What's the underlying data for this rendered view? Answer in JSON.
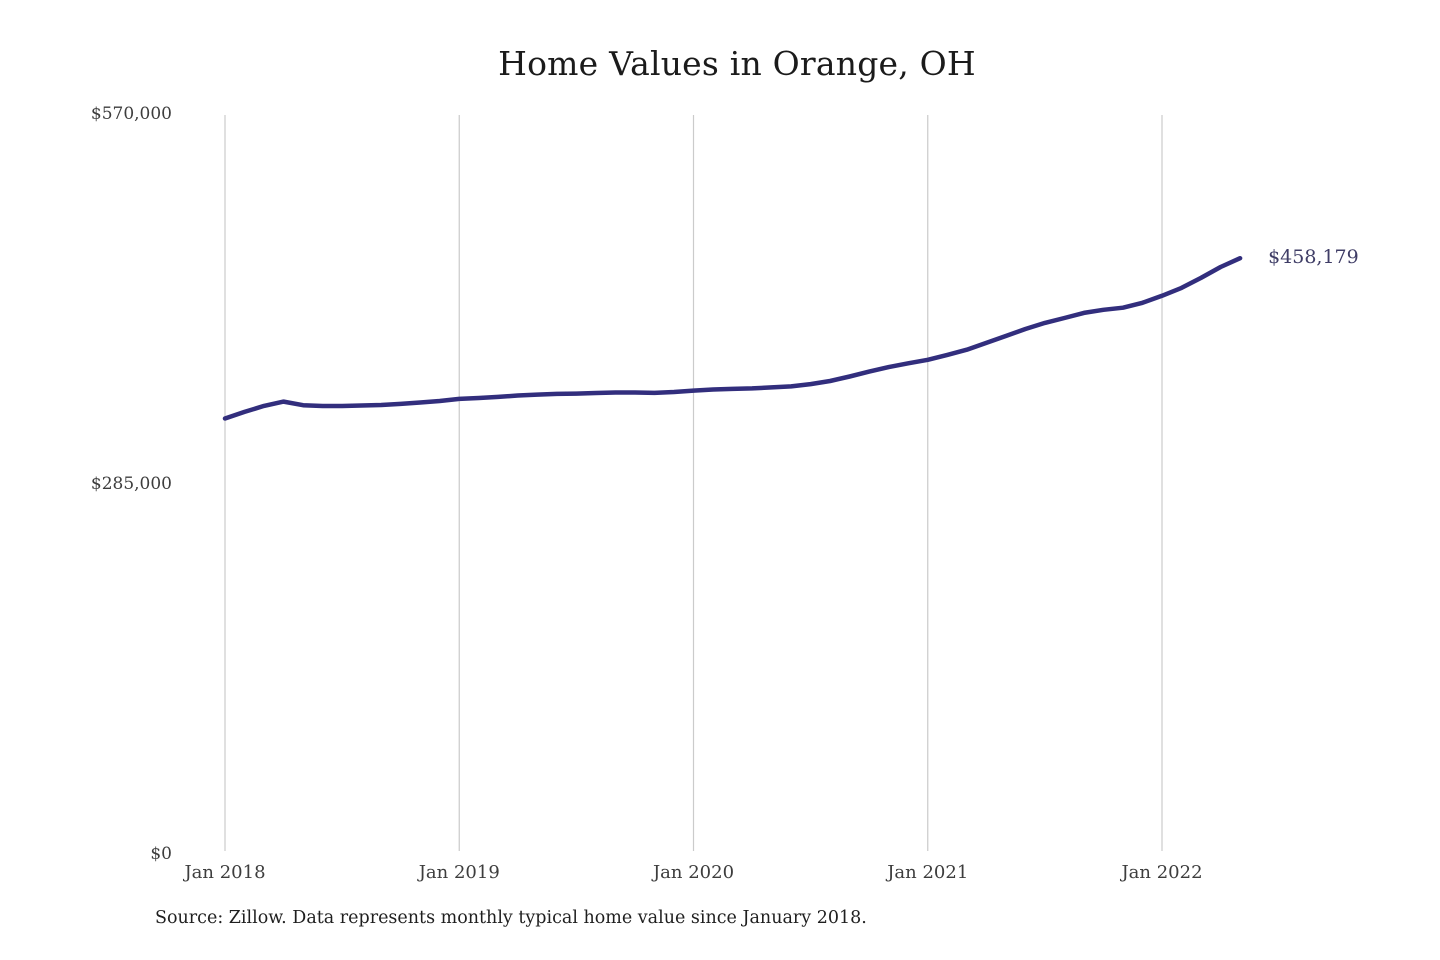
{
  "header": {
    "title": "Home Values in Orange, OH"
  },
  "footer": {
    "source_note": "Source: Zillow. Data represents monthly typical home value since January 2018."
  },
  "chart_data": {
    "type": "line",
    "title": "Home Values in Orange, OH",
    "series_name": "Monthly typical home value (Zillow)",
    "x": [
      "2018-01",
      "2018-02",
      "2018-03",
      "2018-04",
      "2018-05",
      "2018-06",
      "2018-07",
      "2018-08",
      "2018-09",
      "2018-10",
      "2018-11",
      "2018-12",
      "2019-01",
      "2019-02",
      "2019-03",
      "2019-04",
      "2019-05",
      "2019-06",
      "2019-07",
      "2019-08",
      "2019-09",
      "2019-10",
      "2019-11",
      "2019-12",
      "2020-01",
      "2020-02",
      "2020-03",
      "2020-04",
      "2020-05",
      "2020-06",
      "2020-07",
      "2020-08",
      "2020-09",
      "2020-10",
      "2020-11",
      "2020-12",
      "2021-01",
      "2021-02",
      "2021-03",
      "2021-04",
      "2021-05",
      "2021-06",
      "2021-07",
      "2021-08",
      "2021-09",
      "2021-10",
      "2021-11",
      "2021-12",
      "2022-01",
      "2022-02",
      "2022-03",
      "2022-04",
      "2022-05"
    ],
    "values": [
      334700,
      339800,
      344400,
      347700,
      344900,
      344300,
      344300,
      344700,
      345100,
      345900,
      347000,
      348200,
      349800,
      350500,
      351300,
      352400,
      353100,
      353600,
      353900,
      354300,
      354700,
      354700,
      354400,
      355100,
      356200,
      357000,
      357500,
      357900,
      358600,
      359400,
      361200,
      363600,
      367000,
      370800,
      374300,
      377200,
      379900,
      383700,
      387700,
      392900,
      398200,
      403600,
      408300,
      412100,
      416000,
      418400,
      420000,
      423800,
      429200,
      435300,
      443000,
      451400,
      458179
    ],
    "end_value": 458179,
    "end_label": "$458,179",
    "ylim": [
      0,
      570000
    ],
    "y_ticks": [
      {
        "value": 570000,
        "label": "$570,000"
      },
      {
        "value": 285000,
        "label": "$285,000"
      },
      {
        "value": 0,
        "label": "$0"
      }
    ],
    "x_ticks": [
      {
        "x": "2018-01",
        "label": "Jan 2018"
      },
      {
        "x": "2019-01",
        "label": "Jan 2019"
      },
      {
        "x": "2020-01",
        "label": "Jan 2020"
      },
      {
        "x": "2021-01",
        "label": "Jan 2021"
      },
      {
        "x": "2022-01",
        "label": "Jan 2022"
      }
    ],
    "grid": "vertical-only",
    "legend_position": "none",
    "line_color": "#322e7d",
    "end_label_color": "#3f3d66",
    "gridline_color": "#cbcbcb",
    "axis_text_color": "#3d3d3d"
  }
}
